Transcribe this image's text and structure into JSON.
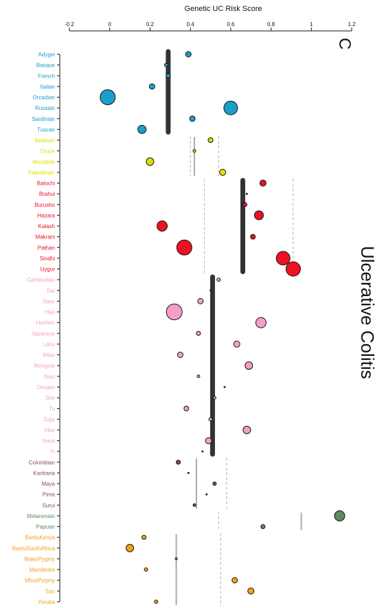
{
  "chart_data": {
    "type": "scatter",
    "title": "",
    "xlabel": "Genetic UC Risk Score",
    "ylabel": "",
    "panel_label": "C",
    "side_title": "Ulcerative Colitis",
    "xlim": [
      -0.2,
      1.2
    ],
    "x_ticks": [
      "-0.2",
      "0",
      "0.2",
      "0.4",
      "0.6",
      "0.8",
      "1",
      "1.2"
    ],
    "grid": false,
    "legend": "none",
    "groups": [
      {
        "color": "#1b9ec9",
        "mean": 0.29,
        "range": [
          0.29,
          0.29
        ],
        "populations": [
          {
            "name": "Adygei",
            "value": 0.39,
            "size": 8
          },
          {
            "name": "Basque",
            "value": 0.28,
            "size": 5
          },
          {
            "name": "French",
            "value": 0.29,
            "size": 6
          },
          {
            "name": "Italian",
            "value": 0.21,
            "size": 8
          },
          {
            "name": "Orcadian",
            "value": -0.01,
            "size": 22
          },
          {
            "name": "Russian",
            "value": 0.6,
            "size": 20
          },
          {
            "name": "Sardinian",
            "value": 0.41,
            "size": 8
          },
          {
            "name": "Tuscan",
            "value": 0.16,
            "size": 12
          }
        ]
      },
      {
        "color": "#e0e000",
        "mean": 0.42,
        "range": [
          0.4,
          0.54
        ],
        "populations": [
          {
            "name": "Bedouin",
            "value": 0.5,
            "size": 7
          },
          {
            "name": "Druze",
            "value": 0.42,
            "size": 4
          },
          {
            "name": "Mozabite",
            "value": 0.2,
            "size": 11
          },
          {
            "name": "Palestinian",
            "value": 0.56,
            "size": 9
          }
        ]
      },
      {
        "color": "#ee1122",
        "mean": 0.66,
        "range": [
          0.47,
          0.91
        ],
        "populations": [
          {
            "name": "Balochi",
            "value": 0.76,
            "size": 9
          },
          {
            "name": "Brahui",
            "value": 0.68,
            "size": 2
          },
          {
            "name": "Burusho",
            "value": 0.67,
            "size": 6
          },
          {
            "name": "Hazara",
            "value": 0.74,
            "size": 13
          },
          {
            "name": "Kalash",
            "value": 0.26,
            "size": 15
          },
          {
            "name": "Makrani",
            "value": 0.71,
            "size": 7
          },
          {
            "name": "Pathan",
            "value": 0.37,
            "size": 22
          },
          {
            "name": "Sindhi",
            "value": 0.86,
            "size": 20
          },
          {
            "name": "Uygur",
            "value": 0.91,
            "size": 21
          }
        ]
      },
      {
        "color": "#f59fc6",
        "mean": 0.51,
        "range": [
          0.51,
          0.51
        ],
        "populations": [
          {
            "name": "Cambodian",
            "value": 0.54,
            "size": 5
          },
          {
            "name": "Dai",
            "value": 0.5,
            "size": 2
          },
          {
            "name": "Daur",
            "value": 0.45,
            "size": 8
          },
          {
            "name": "Han",
            "value": 0.32,
            "size": 23
          },
          {
            "name": "Hezhen",
            "value": 0.75,
            "size": 15
          },
          {
            "name": "Japanese",
            "value": 0.44,
            "size": 6
          },
          {
            "name": "Lahu",
            "value": 0.63,
            "size": 9
          },
          {
            "name": "Miao",
            "value": 0.35,
            "size": 8
          },
          {
            "name": "Mongola",
            "value": 0.69,
            "size": 11
          },
          {
            "name": "Naxi",
            "value": 0.44,
            "size": 4
          },
          {
            "name": "Oroqen",
            "value": 0.57,
            "size": 2
          },
          {
            "name": "She",
            "value": 0.52,
            "size": 4
          },
          {
            "name": "Tu",
            "value": 0.38,
            "size": 7
          },
          {
            "name": "Tujia",
            "value": 0.5,
            "size": 5
          },
          {
            "name": "Xibo",
            "value": 0.68,
            "size": 11
          },
          {
            "name": "Yakut",
            "value": 0.49,
            "size": 9
          },
          {
            "name": "Yi",
            "value": 0.46,
            "size": 2
          }
        ]
      },
      {
        "color": "#8b4a66",
        "mean": 0.43,
        "range": [
          0.43,
          0.58
        ],
        "populations": [
          {
            "name": "Colombian",
            "value": 0.34,
            "size": 6
          },
          {
            "name": "Karitiana",
            "value": 0.39,
            "size": 2
          },
          {
            "name": "Maya",
            "value": 0.52,
            "size": 5
          },
          {
            "name": "Pima",
            "value": 0.48,
            "size": 2
          },
          {
            "name": "Surui",
            "value": 0.42,
            "size": 4
          }
        ]
      },
      {
        "color": "#5b8a5e",
        "mean": 0.95,
        "range": [
          0.54,
          0.54
        ],
        "populations": [
          {
            "name": "Melanesian",
            "value": 1.14,
            "size": 15
          },
          {
            "name": "Papuan",
            "value": 0.76,
            "size": 6
          }
        ]
      },
      {
        "color": "#f7a01e",
        "mean": 0.33,
        "range": [
          0.55,
          0.55
        ],
        "populations": [
          {
            "name": "BantuKenya",
            "value": 0.17,
            "size": 6
          },
          {
            "name": "BantuSouthAfrica",
            "value": 0.1,
            "size": 11
          },
          {
            "name": "BiakaPygmy",
            "value": 0.33,
            "size": 3
          },
          {
            "name": "Mandenka",
            "value": 0.18,
            "size": 5
          },
          {
            "name": "MbutiPygmy",
            "value": 0.62,
            "size": 8
          },
          {
            "name": "San",
            "value": 0.7,
            "size": 9
          },
          {
            "name": "Yoruba",
            "value": 0.23,
            "size": 5
          }
        ]
      }
    ]
  }
}
